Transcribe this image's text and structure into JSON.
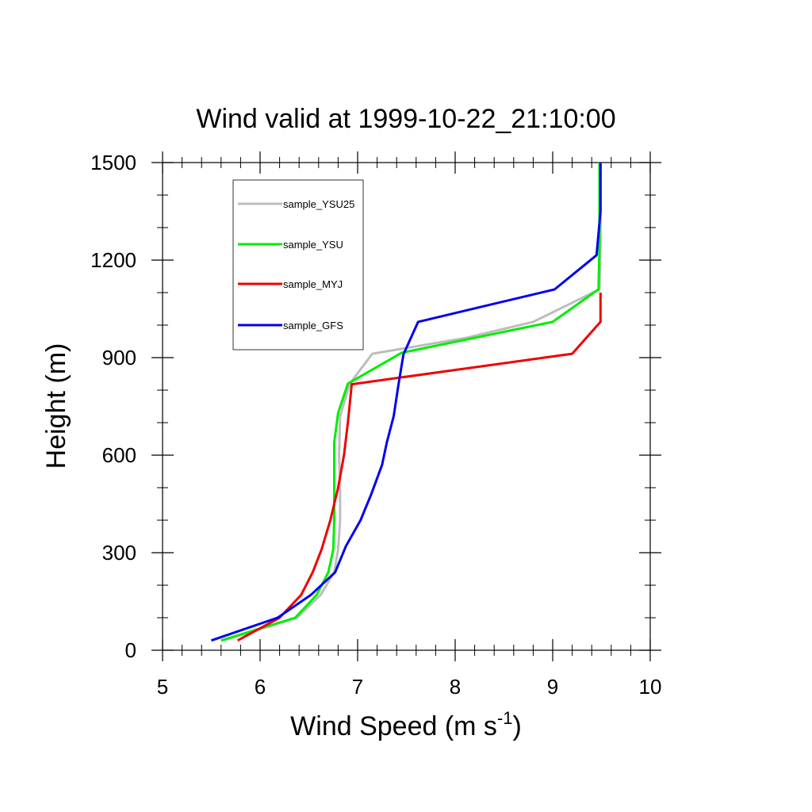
{
  "chart_data": {
    "type": "line",
    "title": "Wind valid at 1999-10-22_21:10:00",
    "xlabel_main": "Wind Speed (m s",
    "xlabel_sup": "-1",
    "xlabel_tail": ")",
    "ylabel": "Height (m)",
    "xlim": [
      5,
      10
    ],
    "ylim": [
      0,
      1500
    ],
    "x_ticks": [
      5,
      6,
      7,
      8,
      9,
      10
    ],
    "x_tick_labels": [
      "5",
      "6",
      "7",
      "8",
      "9",
      "10"
    ],
    "y_ticks": [
      0,
      300,
      600,
      900,
      1200,
      1500
    ],
    "y_tick_labels": [
      "0",
      "300",
      "600",
      "900",
      "1200",
      "1500"
    ],
    "grid": false,
    "legend_position": "top-left",
    "series": [
      {
        "name": "sample_YSU25",
        "color": "#bdbdbd",
        "points": [
          [
            5.62,
            30
          ],
          [
            6.38,
            100
          ],
          [
            6.62,
            170
          ],
          [
            6.76,
            240
          ],
          [
            6.8,
            310
          ],
          [
            6.82,
            400
          ],
          [
            6.82,
            500
          ],
          [
            6.81,
            600
          ],
          [
            6.82,
            720
          ],
          [
            6.92,
            820
          ],
          [
            7.15,
            912
          ],
          [
            8.1,
            960
          ],
          [
            8.8,
            1010
          ],
          [
            9.48,
            1110
          ],
          [
            9.49,
            1250
          ],
          [
            9.49,
            1500
          ]
        ]
      },
      {
        "name": "sample_YSU",
        "color": "#00ee00",
        "points": [
          [
            5.6,
            30
          ],
          [
            6.36,
            100
          ],
          [
            6.58,
            170
          ],
          [
            6.7,
            240
          ],
          [
            6.75,
            310
          ],
          [
            6.76,
            400
          ],
          [
            6.76,
            500
          ],
          [
            6.76,
            640
          ],
          [
            6.8,
            730
          ],
          [
            6.9,
            820
          ],
          [
            7.45,
            915
          ],
          [
            9.0,
            1010
          ],
          [
            9.47,
            1110
          ],
          [
            9.48,
            1250
          ],
          [
            9.48,
            1500
          ]
        ]
      },
      {
        "name": "sample_MYJ",
        "color": "#ee0000",
        "points": [
          [
            5.77,
            30
          ],
          [
            6.2,
            100
          ],
          [
            6.42,
            170
          ],
          [
            6.54,
            240
          ],
          [
            6.63,
            310
          ],
          [
            6.72,
            400
          ],
          [
            6.8,
            500
          ],
          [
            6.86,
            600
          ],
          [
            6.9,
            700
          ],
          [
            6.94,
            818
          ],
          [
            9.2,
            912
          ],
          [
            9.49,
            1010
          ],
          [
            9.49,
            1100
          ]
        ]
      },
      {
        "name": "sample_GFS",
        "color": "#0000ee",
        "points": [
          [
            5.5,
            30
          ],
          [
            6.18,
            100
          ],
          [
            6.52,
            170
          ],
          [
            6.77,
            240
          ],
          [
            6.88,
            320
          ],
          [
            7.03,
            400
          ],
          [
            7.14,
            480
          ],
          [
            7.25,
            570
          ],
          [
            7.3,
            640
          ],
          [
            7.37,
            720
          ],
          [
            7.42,
            820
          ],
          [
            7.47,
            910
          ],
          [
            7.62,
            1010
          ],
          [
            9.02,
            1110
          ],
          [
            9.45,
            1215
          ],
          [
            9.49,
            1350
          ],
          [
            9.49,
            1500
          ]
        ]
      }
    ]
  }
}
